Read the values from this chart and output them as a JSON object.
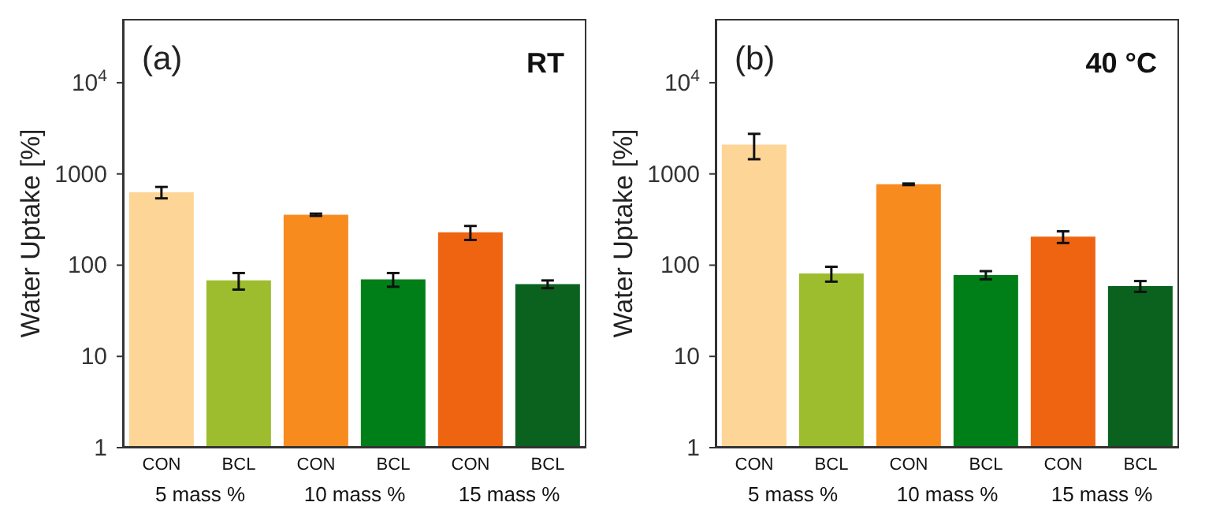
{
  "chart_data": [
    {
      "type": "bar",
      "title": "(a)",
      "subtitle": "RT",
      "ylabel": "Water Uptake [%]",
      "categories": [
        "CON",
        "BCL",
        "CON",
        "BCL",
        "CON",
        "BCL"
      ],
      "values": [
        630,
        68,
        357,
        70,
        229,
        62
      ],
      "errors": [
        90,
        14,
        10,
        12,
        40,
        6
      ],
      "colors": [
        "#fdd597",
        "#9dbd2e",
        "#f88b1e",
        "#007f19",
        "#ee6411",
        "#0a621e"
      ],
      "annotations": [
        "5 mass %",
        "10 mass %",
        "15 mass %"
      ],
      "log": true,
      "ylim": [
        1,
        50000
      ],
      "yticks": [
        1,
        10,
        100,
        1000,
        {
          "value": 10000,
          "label": "10$^{4}$"
        }
      ]
    },
    {
      "type": "bar",
      "title": "(b)",
      "subtitle": "40 °C",
      "ylabel": "Water Uptake [%]",
      "categories": [
        "CON",
        "BCL",
        "CON",
        "BCL",
        "CON",
        "BCL"
      ],
      "values": [
        2100,
        81,
        770,
        78,
        205,
        59
      ],
      "errors": [
        650,
        15,
        15,
        8,
        30,
        8
      ],
      "colors": [
        "#fdd597",
        "#9dbd2e",
        "#f88b1e",
        "#007f19",
        "#ee6411",
        "#0a621e"
      ],
      "annotations": [
        "5 mass %",
        "10 mass %",
        "15 mass %"
      ],
      "log": true,
      "ylim": [
        1,
        50000
      ],
      "yticks": [
        1,
        10,
        100,
        1000,
        {
          "value": 10000,
          "label": "10$^{4}$"
        }
      ]
    }
  ]
}
